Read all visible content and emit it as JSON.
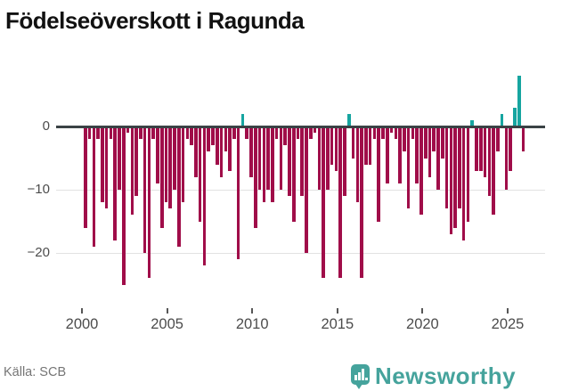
{
  "title": "Födelseöverskott i Ragunda",
  "footer": {
    "source": "Källa: SCB",
    "brand": "Newsworthy"
  },
  "colors": {
    "negative_bar": "#a00d49",
    "positive_bar": "#16a5a0",
    "zero_line": "#3a4245",
    "gridline": "#e2e2e2",
    "axis_text": "#4c4c4c",
    "brand_teal": "#45a39c",
    "source_text": "#757575",
    "title_text": "#121212"
  },
  "chart_data": {
    "type": "bar",
    "title": "Födelseöverskott i Ragunda",
    "frequency": "quarterly",
    "x_start": "2000 Q1",
    "x_end": "2025 Q4",
    "x_tick_labels": [
      "2000",
      "2005",
      "2010",
      "2015",
      "2020",
      "2025"
    ],
    "y_tick_labels": [
      "0",
      "−10",
      "−20"
    ],
    "y_tick_values": [
      0,
      -10,
      -20
    ],
    "ylim": [
      -27,
      9
    ],
    "grid": "horizontal",
    "legend": "none",
    "values": [
      -16,
      -2,
      -19,
      -2,
      -12,
      -13,
      -2,
      -18,
      -10,
      -25,
      -1,
      -14,
      -11,
      -2,
      -20,
      -24,
      -2,
      -9,
      -16,
      -12,
      -13,
      -10,
      -19,
      -12,
      -2,
      -3,
      -8,
      -15,
      -22,
      -4,
      -3,
      -6,
      -8,
      -4,
      -7,
      -2,
      -21,
      2,
      -2,
      -8,
      -16,
      -10,
      -12,
      -10,
      -12,
      -2,
      -10,
      -3,
      -11,
      -15,
      -2,
      -11,
      -20,
      -2,
      -1,
      -10,
      -24,
      -10,
      -6,
      -7,
      -24,
      -11,
      2,
      -5,
      -12,
      -24,
      -6,
      -6,
      -2,
      -15,
      -2,
      -9,
      -1,
      -2,
      -9,
      -4,
      -13,
      -2,
      -9,
      -14,
      -5,
      -8,
      -4,
      -10,
      -5,
      -13,
      -17,
      -16,
      -13,
      -18,
      -15,
      1,
      -7,
      -7,
      -8,
      -11,
      -14,
      -4,
      2,
      -10,
      -7,
      3,
      8,
      -4
    ]
  }
}
